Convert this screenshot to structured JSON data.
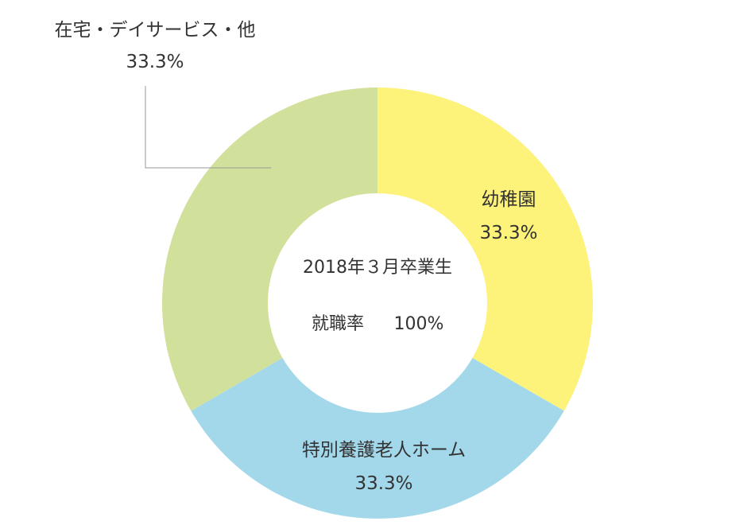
{
  "chart_data": {
    "type": "pie",
    "style": "donut",
    "center_text": {
      "line1": "2018年３月卒業生",
      "line2_label": "就職率",
      "line2_value": "100%"
    },
    "slices": [
      {
        "name": "幼稚園",
        "value": 33.3,
        "label": "33.3%",
        "color": "#fdf27a"
      },
      {
        "name": "特別養護老人ホーム",
        "value": 33.3,
        "label": "33.3%",
        "color": "#a3d8eb"
      },
      {
        "name": "在宅・デイサービス・他",
        "value": 33.3,
        "label": "33.3%",
        "color": "#d1e09b"
      }
    ],
    "leader_line_color": "#999999"
  }
}
